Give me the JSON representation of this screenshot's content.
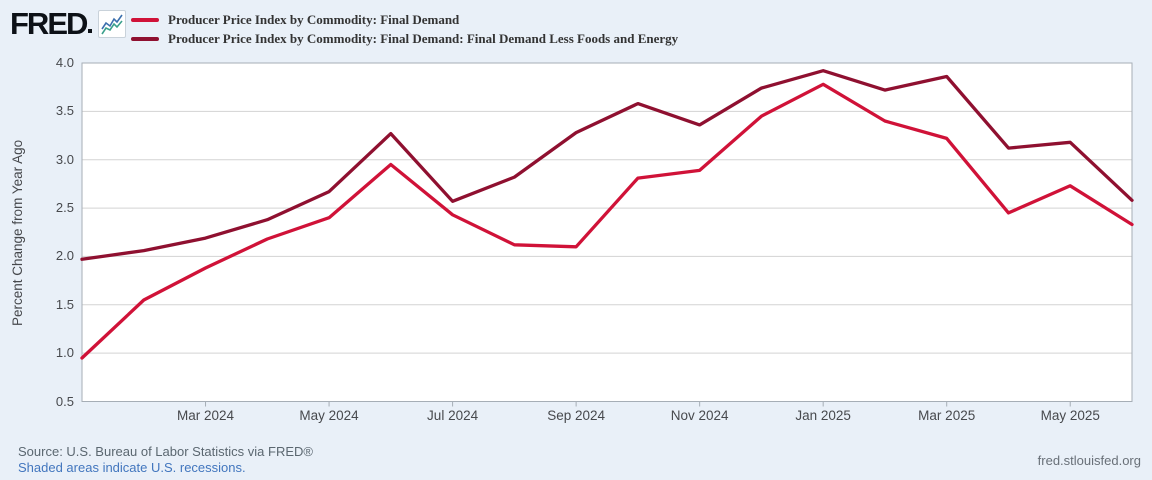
{
  "header": {
    "logo_text": "FRED"
  },
  "chart_data": {
    "type": "line",
    "title": "",
    "xlabel": "",
    "ylabel": "Percent Change from Year Ago",
    "ylim": [
      0.5,
      4.0
    ],
    "y_ticks": [
      "4.0",
      "3.5",
      "3.0",
      "2.5",
      "2.0",
      "1.5",
      "1.0",
      "0.5"
    ],
    "grid": "horizontal",
    "legend_position": "top-left",
    "x": [
      "Jan 2024",
      "Feb 2024",
      "Mar 2024",
      "Apr 2024",
      "May 2024",
      "Jun 2024",
      "Jul 2024",
      "Aug 2024",
      "Sep 2024",
      "Oct 2024",
      "Nov 2024",
      "Dec 2024",
      "Jan 2025",
      "Feb 2025",
      "Mar 2025",
      "Apr 2025",
      "May 2025",
      "Jun 2025"
    ],
    "x_tick_indices": [
      2,
      4,
      6,
      8,
      10,
      12,
      14,
      16
    ],
    "x_tick_labels": [
      "Mar 2024",
      "May 2024",
      "Jul 2024",
      "Sep 2024",
      "Nov 2024",
      "Jan 2025",
      "Mar 2025",
      "May 2025"
    ],
    "series": [
      {
        "name": "Producer Price Index by Commodity: Final Demand",
        "color": "#d01238",
        "values": [
          0.95,
          1.55,
          1.88,
          2.18,
          2.4,
          2.95,
          2.43,
          2.12,
          2.1,
          2.81,
          2.89,
          3.45,
          3.78,
          3.4,
          3.22,
          2.45,
          2.73,
          2.33
        ]
      },
      {
        "name": "Producer Price Index by Commodity: Final Demand: Final Demand Less Foods and Energy",
        "color": "#8f1030",
        "values": [
          1.97,
          2.06,
          2.19,
          2.38,
          2.67,
          3.27,
          2.57,
          2.82,
          3.28,
          3.58,
          3.36,
          3.74,
          3.92,
          3.72,
          3.86,
          3.12,
          3.18,
          2.58
        ]
      }
    ]
  },
  "footer": {
    "source": "Source: U.S. Bureau of Labor Statistics via FRED®",
    "recession_note": "Shaded areas indicate U.S. recessions.",
    "site": "fred.stlouisfed.org"
  },
  "colors": {
    "background": "#e9f0f8",
    "plot_background": "#ffffff",
    "frame": "#a6aeb6",
    "gridline": "#d3d3d3",
    "axis_text": "#47494d",
    "legend_text": "#333333",
    "source_text": "#5b6770",
    "link_blue": "#4276be",
    "series_1": "#d01238",
    "series_2": "#8f1030"
  }
}
